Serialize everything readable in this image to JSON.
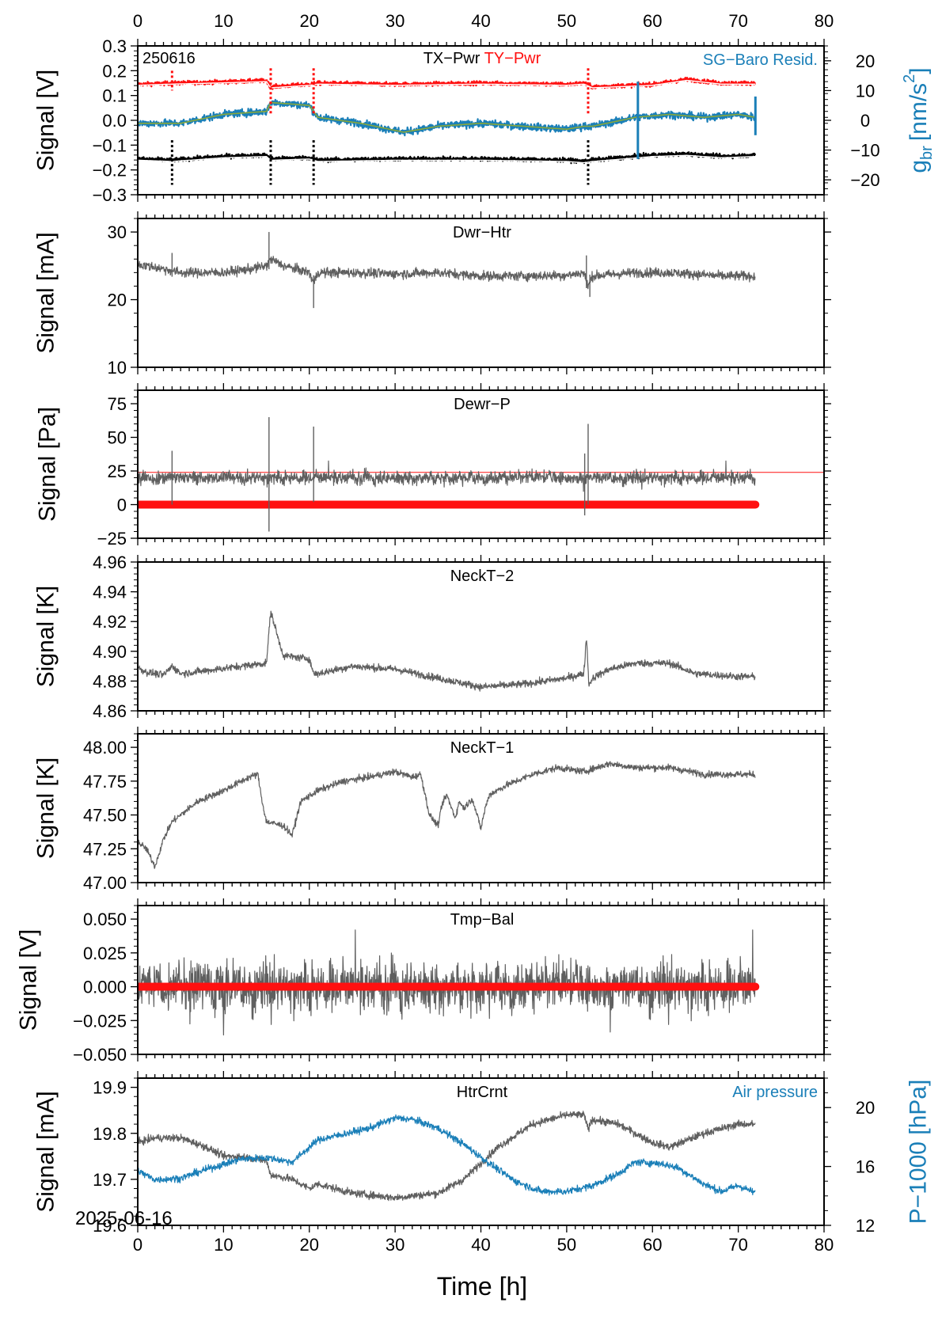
{
  "date_label": "2025-06-16",
  "colors": {
    "grey": "#5f5f5f",
    "red": "#ff1010",
    "blue": "#1a7fb8",
    "olive": "#8aa83a",
    "black": "#000000"
  },
  "chart_data": [
    {
      "type": "line",
      "title_left": "250616",
      "title_parts": [
        "TX−Pwr",
        "TY−Pwr"
      ],
      "title_right": "SG−Baro Resid.",
      "ylabel": "Signal [V]",
      "ylabel_right": "g",
      "ylabel_right_sub": "br",
      "ylabel_right_unit": "[nm/s",
      "ylabel_right_sup": "2",
      "ylabel_right_close": "]",
      "xlim": [
        0,
        80
      ],
      "ylim": [
        -0.3,
        0.3
      ],
      "yticks": [
        0.3,
        0.2,
        0.1,
        0.0,
        -0.1,
        -0.2,
        -0.3
      ],
      "ytick_labels": [
        "0.3",
        "0.2",
        "0.1",
        "0.0",
        "−0.1",
        "−0.2",
        "−0.3"
      ],
      "ylim_right": [
        -25,
        25
      ],
      "yticks_right": [
        20,
        10,
        0,
        -10,
        -20
      ],
      "ytick_labels_right": [
        "20",
        "10",
        "0",
        "−10",
        "−20"
      ],
      "series": [
        {
          "name": "TY−Pwr",
          "color": "red",
          "x": [
            0,
            4,
            10,
            15,
            15.5,
            20,
            21,
            30,
            40,
            50,
            52,
            53,
            60,
            64,
            68,
            72
          ],
          "y": [
            0.145,
            0.15,
            0.155,
            0.16,
            0.135,
            0.145,
            0.15,
            0.145,
            0.15,
            0.145,
            0.15,
            0.135,
            0.145,
            0.165,
            0.15,
            0.15
          ]
        },
        {
          "name": "TX−Pwr",
          "color": "black",
          "x": [
            0,
            4,
            10,
            15,
            15.5,
            20,
            21,
            30,
            40,
            50,
            52,
            53,
            60,
            64,
            68,
            72
          ],
          "y": [
            -0.155,
            -0.16,
            -0.145,
            -0.14,
            -0.155,
            -0.15,
            -0.16,
            -0.155,
            -0.155,
            -0.16,
            -0.165,
            -0.16,
            -0.14,
            -0.135,
            -0.145,
            -0.14
          ]
        },
        {
          "name": "SG−Baro Resid.",
          "color": "blue",
          "x": [
            0,
            5,
            10,
            15,
            15.5,
            20,
            21,
            26,
            31,
            35,
            40,
            45,
            50,
            52,
            53,
            58,
            62,
            66,
            70,
            72
          ],
          "y": [
            -1,
            -1,
            2,
            3,
            6,
            5,
            1,
            -1,
            -4,
            -2,
            -1,
            -2,
            -3,
            -2,
            -2,
            1,
            2,
            1,
            2,
            1
          ]
        }
      ],
      "spikes_x": [
        4,
        15.5,
        20.5,
        52.5,
        58.3,
        72
      ]
    },
    {
      "type": "line",
      "title": "Dwr−Htr",
      "ylabel": "Signal [mA]",
      "xlim": [
        0,
        80
      ],
      "ylim": [
        10,
        32
      ],
      "yticks": [
        30,
        20,
        10
      ],
      "ytick_labels": [
        "30",
        "20",
        "10"
      ],
      "series": [
        {
          "color": "grey",
          "x": [
            0,
            2,
            5,
            10,
            13,
            15,
            15.5,
            17,
            20,
            20.5,
            21,
            25,
            30,
            35,
            40,
            45,
            50,
            52,
            52.5,
            53,
            58,
            62,
            68,
            72
          ],
          "y": [
            25.2,
            24.8,
            24.0,
            24.0,
            24.5,
            25.0,
            26.0,
            25.0,
            24.0,
            22.5,
            24.0,
            24.0,
            23.8,
            24.0,
            23.5,
            23.5,
            23.6,
            24.0,
            22.0,
            23.5,
            24.0,
            24.0,
            23.5,
            23.5
          ]
        }
      ],
      "spikes_x": [
        4,
        15.3,
        20.5,
        52.3,
        52.7
      ]
    },
    {
      "type": "line",
      "title": "Dewr−P",
      "ylabel": "Signal [Pa]",
      "xlim": [
        0,
        80
      ],
      "ylim": [
        -25,
        85
      ],
      "yticks": [
        75,
        50,
        25,
        0,
        -25
      ],
      "ytick_labels": [
        "75",
        "50",
        "25",
        "0",
        "−25"
      ],
      "threshold": 24,
      "series": [
        {
          "color": "grey",
          "x": [
            0,
            72
          ],
          "y": [
            20,
            20
          ]
        },
        {
          "color": "red",
          "x": [
            0,
            72
          ],
          "y": [
            0,
            0
          ]
        }
      ],
      "spikes_x": [
        4,
        15.3,
        20.5,
        52.1,
        52.5
      ]
    },
    {
      "type": "line",
      "title": "NeckT−2",
      "ylabel": "Signal [K]",
      "xlim": [
        0,
        80
      ],
      "ylim": [
        4.86,
        4.96
      ],
      "yticks": [
        4.96,
        4.94,
        4.92,
        4.9,
        4.88,
        4.86
      ],
      "ytick_labels": [
        "4.96",
        "4.94",
        "4.92",
        "4.90",
        "4.88",
        "4.86"
      ],
      "series": [
        {
          "color": "grey",
          "x": [
            0,
            1,
            3,
            4,
            5,
            8,
            12,
            15,
            15.5,
            16.5,
            17,
            20,
            20.5,
            21,
            25,
            30,
            35,
            40,
            45,
            50,
            52,
            52.3,
            52.6,
            53,
            55,
            58,
            62,
            65,
            70,
            72
          ],
          "y": [
            4.889,
            4.886,
            4.884,
            4.89,
            4.885,
            4.887,
            4.89,
            4.892,
            4.927,
            4.906,
            4.897,
            4.895,
            4.885,
            4.885,
            4.89,
            4.888,
            4.882,
            4.876,
            4.878,
            4.882,
            4.885,
            4.91,
            4.877,
            4.882,
            4.888,
            4.892,
            4.892,
            4.885,
            4.883,
            4.883
          ]
        }
      ]
    },
    {
      "type": "line",
      "title": "NeckT−1",
      "ylabel": "Signal [K]",
      "xlim": [
        0,
        80
      ],
      "ylim": [
        47.0,
        48.1
      ],
      "yticks": [
        48.0,
        47.75,
        47.5,
        47.25,
        47.0
      ],
      "ytick_labels": [
        "48.00",
        "47.75",
        "47.50",
        "47.25",
        "47.00"
      ],
      "series": [
        {
          "color": "grey",
          "x": [
            0,
            1,
            2,
            3,
            4,
            5,
            7,
            10,
            13,
            14,
            14.5,
            15,
            17,
            18,
            19,
            21,
            24,
            27,
            30,
            32,
            33,
            34,
            35,
            35.5,
            36,
            37,
            37.5,
            38,
            39,
            40,
            40.5,
            41,
            43,
            46,
            49,
            52,
            55,
            58,
            62,
            66,
            70,
            72
          ],
          "y": [
            47.3,
            47.25,
            47.12,
            47.32,
            47.45,
            47.5,
            47.6,
            47.68,
            47.78,
            47.8,
            47.6,
            47.45,
            47.42,
            47.35,
            47.6,
            47.68,
            47.75,
            47.78,
            47.82,
            47.78,
            47.8,
            47.5,
            47.42,
            47.58,
            47.65,
            47.48,
            47.6,
            47.55,
            47.62,
            47.4,
            47.55,
            47.65,
            47.72,
            47.8,
            47.85,
            47.82,
            47.88,
            47.85,
            47.85,
            47.8,
            47.8,
            47.8
          ]
        }
      ]
    },
    {
      "type": "line",
      "title": "Tmp−Bal",
      "ylabel": "Signal [V]",
      "xlim": [
        0,
        80
      ],
      "ylim": [
        -0.05,
        0.06
      ],
      "yticks": [
        0.05,
        0.025,
        0.0,
        -0.025,
        -0.05
      ],
      "ytick_labels": [
        "0.050",
        "0.025",
        "0.000",
        "−0.025",
        "−0.050"
      ],
      "series": [
        {
          "color": "grey",
          "x": [
            0,
            72
          ],
          "y": [
            0,
            0
          ]
        },
        {
          "color": "red",
          "x": [
            0,
            72
          ],
          "y": [
            0,
            0
          ]
        }
      ]
    },
    {
      "type": "line",
      "title": "HtrCrnt",
      "title_right": "Air pressure",
      "ylabel": "Signal [mA]",
      "ylabel_right": "P−1000 [hPa]",
      "xlabel": "Time [h]",
      "xlim": [
        0,
        80
      ],
      "xticks": [
        0,
        10,
        20,
        30,
        40,
        50,
        60,
        70,
        80
      ],
      "xtick_labels": [
        "0",
        "10",
        "20",
        "30",
        "40",
        "50",
        "60",
        "70",
        "80"
      ],
      "ylim": [
        19.6,
        19.92
      ],
      "yticks": [
        19.9,
        19.8,
        19.7,
        19.6
      ],
      "ytick_labels": [
        "19.9",
        "19.8",
        "19.7",
        "19.6"
      ],
      "ylim_right": [
        12,
        22
      ],
      "yticks_right": [
        20,
        16,
        12
      ],
      "ytick_labels_right": [
        "20",
        "16",
        "12"
      ],
      "series": [
        {
          "name": "HtrCrnt",
          "color": "grey",
          "x": [
            0,
            2,
            5,
            8,
            10,
            12,
            15,
            15.5,
            18,
            20,
            21,
            25,
            30,
            35,
            38,
            42,
            46,
            50,
            52,
            52.5,
            53,
            56,
            60,
            62,
            66,
            70,
            72
          ],
          "y": [
            19.78,
            19.79,
            19.79,
            19.77,
            19.75,
            19.75,
            19.74,
            19.71,
            19.7,
            19.68,
            19.69,
            19.67,
            19.66,
            19.67,
            19.7,
            19.77,
            19.82,
            19.84,
            19.84,
            19.81,
            19.83,
            19.82,
            19.78,
            19.77,
            19.8,
            19.82,
            19.82
          ]
        },
        {
          "name": "Air pressure",
          "color": "blue",
          "x": [
            0,
            2,
            5,
            8,
            12,
            15,
            18,
            21,
            24,
            27,
            30,
            32,
            35,
            38,
            41,
            44,
            47,
            50,
            53,
            56,
            58,
            61,
            63,
            66,
            68,
            70,
            72
          ],
          "y": [
            15.7,
            15.1,
            15.2,
            15.8,
            16.5,
            16.6,
            16.3,
            17.8,
            18.2,
            18.6,
            19.3,
            19.2,
            18.6,
            17.5,
            16.2,
            15.0,
            14.3,
            14.3,
            14.7,
            15.5,
            16.3,
            16.2,
            15.9,
            14.8,
            14.3,
            14.7,
            14.2
          ]
        }
      ]
    }
  ]
}
